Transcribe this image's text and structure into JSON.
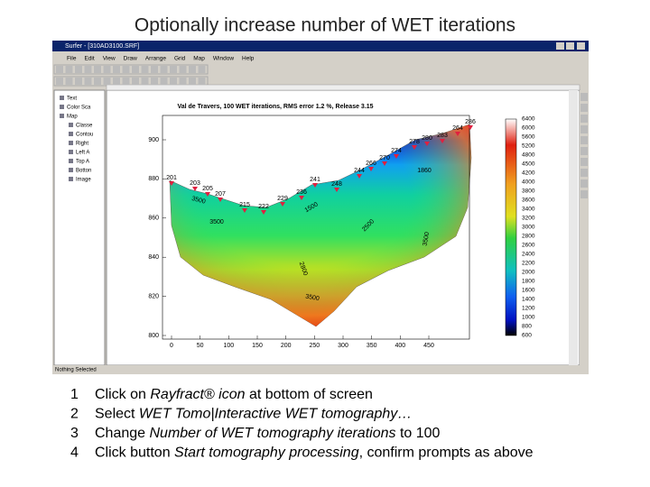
{
  "slide_title": "Optionally increase number of WET iterations",
  "window": {
    "title": "Surfer - [310AD3100.SRF]",
    "menu": [
      "File",
      "Edit",
      "View",
      "Draw",
      "Arrange",
      "Grid",
      "Map",
      "Window",
      "Help"
    ],
    "tree": [
      "Text",
      "Color Sca",
      "Map",
      "Classe",
      "Contou",
      "Right",
      "Left A",
      "Top A",
      "Botton",
      "Image"
    ],
    "status": "Nothing Selected"
  },
  "plot": {
    "title": "Val de Travers,   100 WET iterations,   RMS error 1.2 %,   Release 3.15",
    "yticks": [
      900,
      880,
      860,
      840,
      820,
      800
    ],
    "xticks": [
      0,
      50,
      100,
      150,
      200,
      250,
      300,
      350,
      400,
      450
    ],
    "colorbar": [
      6400,
      6000,
      5600,
      5200,
      4800,
      4500,
      4200,
      4000,
      3800,
      3600,
      3400,
      3200,
      3000,
      2800,
      2600,
      2400,
      2200,
      2000,
      1800,
      1600,
      1400,
      1200,
      1000,
      800,
      600
    ],
    "stations": [
      "201",
      "203",
      "205",
      "207",
      "215",
      "222",
      "229",
      "236",
      "241",
      "248",
      "244",
      "266",
      "270",
      "274",
      "278",
      "280",
      "283",
      "264",
      "286"
    ],
    "contour_labels": [
      "1860",
      "1500",
      "3500",
      "2500",
      "3500",
      "2800",
      "3500",
      "3500"
    ]
  },
  "steps": [
    {
      "number": "1",
      "parts": [
        {
          "text": "Click on "
        },
        {
          "text": "Rayfract® icon",
          "em": true
        },
        {
          "text": " at bottom of screen"
        }
      ]
    },
    {
      "number": "2",
      "parts": [
        {
          "text": "Select "
        },
        {
          "text": "WET Tomo|Interactive WET tomography…",
          "em": true
        }
      ]
    },
    {
      "number": "3",
      "parts": [
        {
          "text": "Change "
        },
        {
          "text": "Number of WET tomography iterations",
          "em": true
        },
        {
          "text": " to 100"
        }
      ]
    },
    {
      "number": "4",
      "parts": [
        {
          "text": "Click button "
        },
        {
          "text": "Start tomography processing",
          "em": true
        },
        {
          "text": ", confirm prompts as above"
        }
      ]
    }
  ]
}
